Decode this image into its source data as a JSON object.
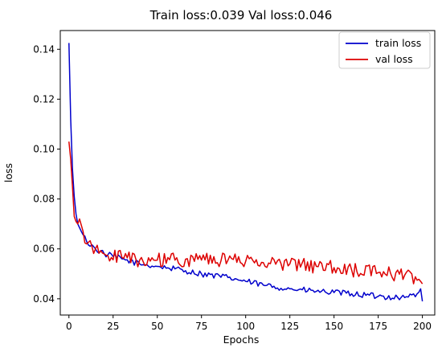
{
  "chart_data": {
    "type": "line",
    "title": "Train loss:0.039 Val loss:0.046",
    "xlabel": "Epochs",
    "ylabel": "loss",
    "xlim": [
      -4.9,
      207
    ],
    "ylim": [
      0.0335,
      0.1475
    ],
    "xticks": [
      0,
      25,
      50,
      75,
      100,
      125,
      150,
      175,
      200
    ],
    "yticks": [
      0.04,
      0.06,
      0.08,
      0.1,
      0.12,
      0.14
    ],
    "ytick_labels": [
      "0.04",
      "0.06",
      "0.08",
      "0.10",
      "0.12",
      "0.14"
    ],
    "grid": false,
    "legend_position": "top-right",
    "series": [
      {
        "name": "train loss",
        "color": "#0000cc",
        "anchors": [
          [
            0,
            0.1425
          ],
          [
            1,
            0.112
          ],
          [
            2,
            0.092
          ],
          [
            3,
            0.081
          ],
          [
            4,
            0.074
          ],
          [
            5,
            0.07
          ],
          [
            7,
            0.067
          ],
          [
            10,
            0.063
          ],
          [
            15,
            0.06
          ],
          [
            20,
            0.058
          ],
          [
            30,
            0.056
          ],
          [
            40,
            0.054
          ],
          [
            50,
            0.053
          ],
          [
            60,
            0.052
          ],
          [
            75,
            0.05
          ],
          [
            90,
            0.0485
          ],
          [
            100,
            0.047
          ],
          [
            110,
            0.0455
          ],
          [
            125,
            0.044
          ],
          [
            140,
            0.043
          ],
          [
            150,
            0.0425
          ],
          [
            160,
            0.042
          ],
          [
            175,
            0.041
          ],
          [
            190,
            0.0405
          ],
          [
            197,
            0.042
          ],
          [
            199,
            0.044
          ],
          [
            200,
            0.039
          ]
        ],
        "noise": 0.0012
      },
      {
        "name": "val loss",
        "color": "#dd0000",
        "anchors": [
          [
            0,
            0.103
          ],
          [
            1,
            0.096
          ],
          [
            2,
            0.085
          ],
          [
            3,
            0.073
          ],
          [
            4,
            0.071
          ],
          [
            5,
            0.07
          ],
          [
            6,
            0.072
          ],
          [
            8,
            0.067
          ],
          [
            10,
            0.062
          ],
          [
            15,
            0.06
          ],
          [
            20,
            0.058
          ],
          [
            30,
            0.0565
          ],
          [
            40,
            0.0555
          ],
          [
            50,
            0.0555
          ],
          [
            60,
            0.0555
          ],
          [
            75,
            0.0555
          ],
          [
            90,
            0.0555
          ],
          [
            100,
            0.055
          ],
          [
            110,
            0.0545
          ],
          [
            125,
            0.054
          ],
          [
            140,
            0.053
          ],
          [
            150,
            0.0525
          ],
          [
            160,
            0.0515
          ],
          [
            175,
            0.0505
          ],
          [
            190,
            0.0495
          ],
          [
            199,
            0.047
          ],
          [
            200,
            0.046
          ]
        ],
        "noise": 0.0028
      }
    ]
  }
}
